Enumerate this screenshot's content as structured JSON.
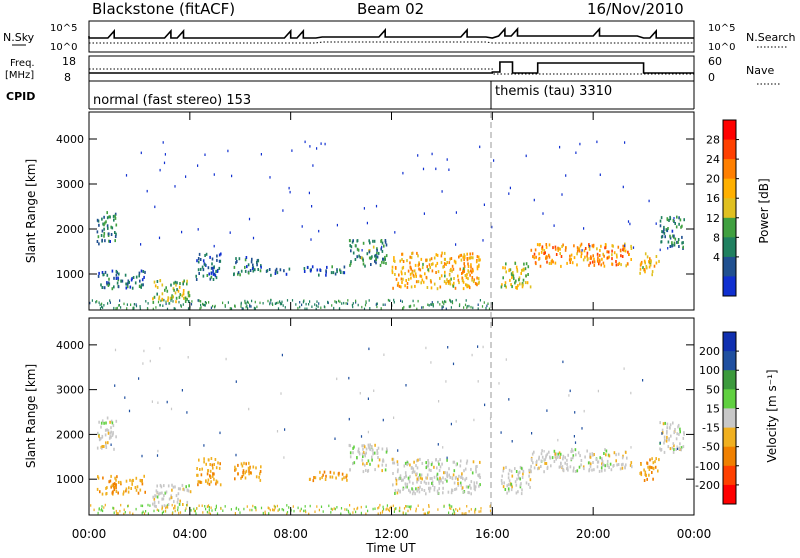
{
  "header": {
    "title": "Blackstone (fitACF)",
    "beam": "Beam 02",
    "date": "16/Nov/2010"
  },
  "noise_panel": {
    "left_label": "N.Sky",
    "right_label": "N.Search",
    "left_ticks": [
      "10^5",
      "10^0"
    ],
    "right_ticks": [
      "10^5",
      "10^0"
    ]
  },
  "freq_panel": {
    "left_label_line1": "Freq.",
    "left_label_line2": "[MHz]",
    "right_label": "Nave",
    "left_ticks": [
      "18",
      "8"
    ],
    "right_ticks": [
      "60",
      "0"
    ]
  },
  "cpid_panel": {
    "label": "CPID",
    "modes": [
      {
        "text": "normal (fast stereo) 153",
        "start_hour": 0
      },
      {
        "text": "themis (tau) 3310",
        "start_hour": 16
      }
    ]
  },
  "colorbars": {
    "power": {
      "label": "Power [dB]",
      "ticks": [
        "28",
        "24",
        "20",
        "16",
        "12",
        "8",
        "4"
      ],
      "colors": [
        "#ff0000",
        "#ff4000",
        "#ff7f00",
        "#ffb000",
        "#e0c020",
        "#40a040",
        "#208060",
        "#205090",
        "#1030d0"
      ]
    },
    "velocity": {
      "label": "Velocity [m s⁻¹]",
      "ticks": [
        "200",
        "100",
        "50",
        "15",
        "-15",
        "-50",
        "-100",
        "-200"
      ],
      "colors": [
        "#1030b0",
        "#2050a0",
        "#3c9a3c",
        "#60d040",
        "#c8c8c8",
        "#f0b020",
        "#f08000",
        "#ff4000",
        "#ff0000"
      ]
    }
  },
  "x_axis": {
    "label": "Time UT",
    "ticks": [
      "00:00",
      "04:00",
      "08:00",
      "12:00",
      "16:00",
      "20:00",
      "00:00"
    ]
  },
  "chart_data": [
    {
      "type": "heatmap",
      "name": "power",
      "ylabel": "Slant Range [km]",
      "xlabel": "",
      "yticks": [
        "1000",
        "2000",
        "3000",
        "4000"
      ],
      "ylim": [
        200,
        4600
      ],
      "xlim_hours": [
        0,
        24
      ],
      "clim": [
        0,
        30
      ],
      "regions": [
        {
          "t0": 0.3,
          "t1": 1.1,
          "r0": 1700,
          "r1": 2400,
          "v": 8
        },
        {
          "t0": 0.3,
          "t1": 2.2,
          "r0": 700,
          "r1": 1100,
          "v": 6
        },
        {
          "t0": 2.5,
          "t1": 4.0,
          "r0": 400,
          "r1": 900,
          "v": 14
        },
        {
          "t0": 4.2,
          "t1": 5.2,
          "r0": 900,
          "r1": 1500,
          "v": 6
        },
        {
          "t0": 5.7,
          "t1": 6.8,
          "r0": 1000,
          "r1": 1400,
          "v": 7
        },
        {
          "t0": 7.0,
          "t1": 8.0,
          "r0": 1000,
          "r1": 1150,
          "v": 6
        },
        {
          "t0": 8.5,
          "t1": 10.2,
          "r0": 1000,
          "r1": 1200,
          "v": 6
        },
        {
          "t0": 10.3,
          "t1": 11.8,
          "r0": 1200,
          "r1": 1800,
          "v": 9
        },
        {
          "t0": 12.0,
          "t1": 15.5,
          "r0": 700,
          "r1": 1500,
          "v": 18
        },
        {
          "t0": 16.3,
          "t1": 17.5,
          "r0": 700,
          "r1": 1300,
          "v": 15
        },
        {
          "t0": 17.5,
          "t1": 21.5,
          "r0": 1200,
          "r1": 1700,
          "v": 20
        },
        {
          "t0": 21.8,
          "t1": 22.6,
          "r0": 1000,
          "r1": 1500,
          "v": 18
        },
        {
          "t0": 22.6,
          "t1": 23.6,
          "r0": 1600,
          "r1": 2300,
          "v": 8
        }
      ]
    },
    {
      "type": "heatmap",
      "name": "velocity",
      "ylabel": "Slant Range [km]",
      "xlabel": "Time UT",
      "yticks": [
        "1000",
        "2000",
        "3000",
        "4000"
      ],
      "ylim": [
        200,
        4600
      ],
      "xlim_hours": [
        0,
        24
      ],
      "clim": [
        -200,
        200
      ],
      "regions": [
        {
          "t0": 0.3,
          "t1": 1.1,
          "r0": 1700,
          "r1": 2400,
          "v": 0
        },
        {
          "t0": 0.3,
          "t1": 2.2,
          "r0": 700,
          "r1": 1100,
          "v": -60
        },
        {
          "t0": 2.5,
          "t1": 4.0,
          "r0": 400,
          "r1": 900,
          "v": 0
        },
        {
          "t0": 4.2,
          "t1": 5.2,
          "r0": 900,
          "r1": 1500,
          "v": -60
        },
        {
          "t0": 5.7,
          "t1": 6.8,
          "r0": 1000,
          "r1": 1400,
          "v": -60
        },
        {
          "t0": 8.5,
          "t1": 10.2,
          "r0": 1000,
          "r1": 1200,
          "v": -60
        },
        {
          "t0": 10.3,
          "t1": 11.8,
          "r0": 1200,
          "r1": 1800,
          "v": 0
        },
        {
          "t0": 12.0,
          "t1": 15.5,
          "r0": 700,
          "r1": 1500,
          "v": 0
        },
        {
          "t0": 16.3,
          "t1": 17.5,
          "r0": 700,
          "r1": 1300,
          "v": 0
        },
        {
          "t0": 17.5,
          "t1": 21.5,
          "r0": 1200,
          "r1": 1700,
          "v": 0
        },
        {
          "t0": 21.8,
          "t1": 22.6,
          "r0": 1000,
          "r1": 1500,
          "v": -60
        },
        {
          "t0": 22.6,
          "t1": 23.6,
          "r0": 1600,
          "r1": 2300,
          "v": 0
        }
      ]
    }
  ]
}
